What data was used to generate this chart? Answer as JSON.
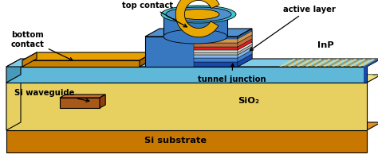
{
  "colors": {
    "si_substrate_front": "#c87800",
    "si_substrate_top": "#e09020",
    "si_substrate_right": "#b06000",
    "sio2_front": "#e8d060",
    "sio2_top": "#f0e080",
    "sio2_right": "#d4b840",
    "sio2_stripe": "#f5e898",
    "inp_front": "#60b8d8",
    "inp_top": "#80cce8",
    "inp_right_stripe_light": "#f0e080",
    "inp_right_stripe_dark": "#c87800",
    "gold_pad_top": "#e8a000",
    "gold_pad_front": "#c88000",
    "gold_pad_right": "#a06000",
    "disk_blue_front": "#3878c0",
    "disk_blue_top": "#5090d0",
    "disk_blue_right": "#2860a8",
    "disk_cyan_top": "#40c8d0",
    "disk_gold_top": "#e8a800",
    "layer_darkblue": "#1848a8",
    "layer_medblue": "#4080d0",
    "layer_lightblue": "#88b8e8",
    "layer_gray": "#b8b8b0",
    "layer_white": "#e0e0d8",
    "layer_red": "#e02020",
    "layer_brown": "#c07040",
    "layer_tan": "#d09850",
    "waveguide_front": "#a85818",
    "waveguide_top": "#c07030",
    "waveguide_right": "#904010",
    "outline": "#000000",
    "white": "#ffffff"
  },
  "labels": {
    "bottom_contact": "bottom\ncontact",
    "top_contact": "top contact",
    "active_layer": "active layer",
    "inp": "InP",
    "tunnel_junction": "tunnel junction",
    "si_waveguide": "Si waveguide",
    "sio2": "SiO₂",
    "si_substrate": "Si substrate"
  }
}
